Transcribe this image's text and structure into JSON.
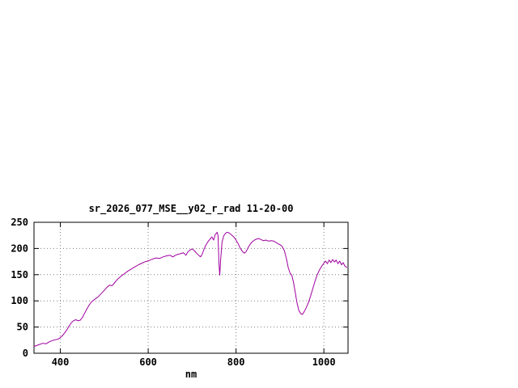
{
  "window": {
    "background": "#ffffff"
  },
  "chart_data": {
    "type": "line",
    "title": "sr_2026_077_MSE__y02_r_rad 11-20-00",
    "xlabel": "nm",
    "ylabel": "",
    "xlim": [
      340,
      1055
    ],
    "ylim": [
      0,
      250
    ],
    "xticks": [
      400,
      600,
      800,
      1000
    ],
    "yticks": [
      0,
      50,
      100,
      150,
      200,
      250
    ],
    "grid": true,
    "legend": "none",
    "axis_color": "#000000",
    "grid_color": "#808080",
    "series": [
      {
        "name": "sr_2026_077_MSE__y02_r_rad",
        "color": "#a000a0",
        "points": [
          [
            340,
            13
          ],
          [
            350,
            16
          ],
          [
            360,
            19
          ],
          [
            368,
            18
          ],
          [
            375,
            22
          ],
          [
            385,
            25
          ],
          [
            395,
            27
          ],
          [
            400,
            30
          ],
          [
            405,
            34
          ],
          [
            410,
            39
          ],
          [
            415,
            45
          ],
          [
            420,
            52
          ],
          [
            425,
            58
          ],
          [
            430,
            62
          ],
          [
            435,
            64
          ],
          [
            440,
            62
          ],
          [
            445,
            63
          ],
          [
            450,
            68
          ],
          [
            455,
            76
          ],
          [
            460,
            84
          ],
          [
            465,
            91
          ],
          [
            470,
            97
          ],
          [
            478,
            103
          ],
          [
            485,
            107
          ],
          [
            492,
            113
          ],
          [
            500,
            120
          ],
          [
            506,
            126
          ],
          [
            512,
            130
          ],
          [
            518,
            129
          ],
          [
            524,
            135
          ],
          [
            530,
            141
          ],
          [
            538,
            147
          ],
          [
            546,
            152
          ],
          [
            554,
            157
          ],
          [
            562,
            161
          ],
          [
            570,
            165
          ],
          [
            578,
            169
          ],
          [
            586,
            172
          ],
          [
            594,
            175
          ],
          [
            602,
            177
          ],
          [
            610,
            180
          ],
          [
            618,
            182
          ],
          [
            626,
            181
          ],
          [
            634,
            184
          ],
          [
            642,
            186
          ],
          [
            650,
            187
          ],
          [
            656,
            184
          ],
          [
            662,
            187
          ],
          [
            668,
            189
          ],
          [
            674,
            190
          ],
          [
            680,
            192
          ],
          [
            686,
            187
          ],
          [
            690,
            193
          ],
          [
            695,
            197
          ],
          [
            700,
            199
          ],
          [
            705,
            196
          ],
          [
            710,
            191
          ],
          [
            715,
            187
          ],
          [
            719,
            184
          ],
          [
            723,
            189
          ],
          [
            727,
            198
          ],
          [
            731,
            206
          ],
          [
            736,
            213
          ],
          [
            741,
            218
          ],
          [
            745,
            222
          ],
          [
            749,
            216
          ],
          [
            753,
            227
          ],
          [
            757,
            231
          ],
          [
            759,
            224
          ],
          [
            761,
            172
          ],
          [
            763,
            149
          ],
          [
            765,
            178
          ],
          [
            768,
            212
          ],
          [
            772,
            224
          ],
          [
            776,
            229
          ],
          [
            780,
            231
          ],
          [
            784,
            230
          ],
          [
            788,
            227
          ],
          [
            792,
            224
          ],
          [
            796,
            221
          ],
          [
            800,
            216
          ],
          [
            805,
            209
          ],
          [
            810,
            200
          ],
          [
            815,
            194
          ],
          [
            819,
            191
          ],
          [
            823,
            194
          ],
          [
            827,
            201
          ],
          [
            832,
            208
          ],
          [
            837,
            213
          ],
          [
            842,
            216
          ],
          [
            847,
            218
          ],
          [
            852,
            219
          ],
          [
            857,
            217
          ],
          [
            862,
            215
          ],
          [
            868,
            216
          ],
          [
            874,
            214
          ],
          [
            880,
            215
          ],
          [
            886,
            214
          ],
          [
            892,
            211
          ],
          [
            898,
            208
          ],
          [
            904,
            205
          ],
          [
            910,
            196
          ],
          [
            915,
            180
          ],
          [
            919,
            163
          ],
          [
            923,
            153
          ],
          [
            927,
            149
          ],
          [
            931,
            135
          ],
          [
            935,
            115
          ],
          [
            939,
            95
          ],
          [
            943,
            82
          ],
          [
            947,
            76
          ],
          [
            951,
            74
          ],
          [
            955,
            79
          ],
          [
            960,
            87
          ],
          [
            965,
            97
          ],
          [
            970,
            110
          ],
          [
            975,
            124
          ],
          [
            980,
            138
          ],
          [
            985,
            150
          ],
          [
            990,
            159
          ],
          [
            995,
            166
          ],
          [
            1000,
            172
          ],
          [
            1004,
            176
          ],
          [
            1008,
            171
          ],
          [
            1012,
            178
          ],
          [
            1016,
            173
          ],
          [
            1020,
            179
          ],
          [
            1024,
            174
          ],
          [
            1028,
            178
          ],
          [
            1032,
            171
          ],
          [
            1036,
            176
          ],
          [
            1040,
            169
          ],
          [
            1044,
            173
          ],
          [
            1048,
            166
          ],
          [
            1052,
            164
          ]
        ]
      }
    ]
  }
}
